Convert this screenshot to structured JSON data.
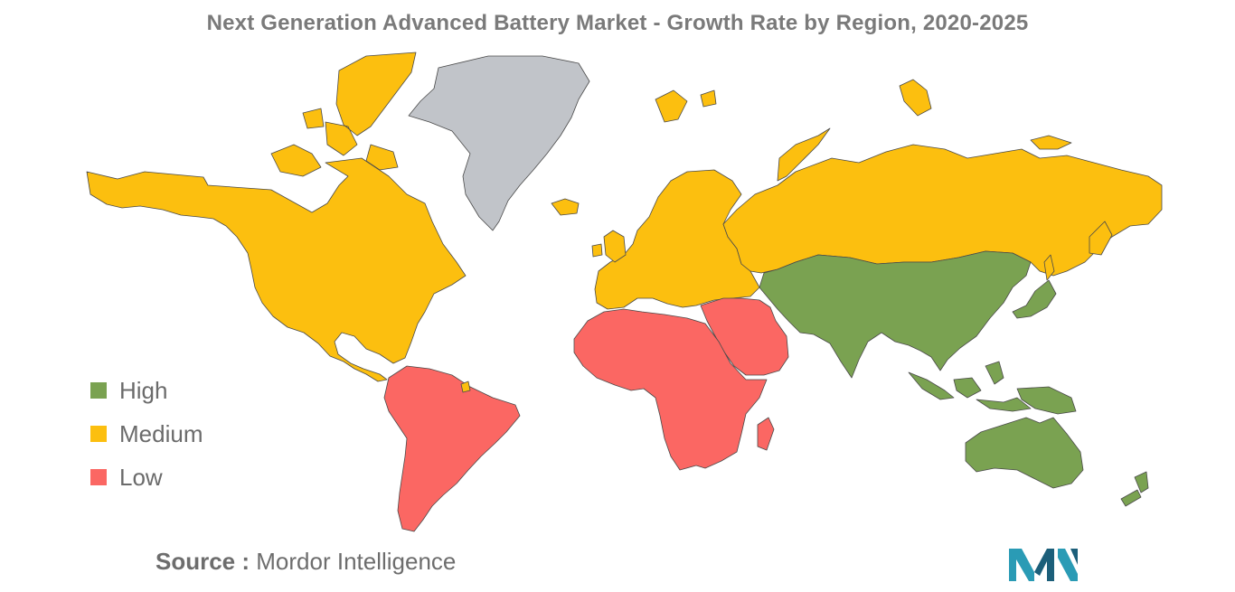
{
  "title": "Next Generation Advanced Battery Market - Growth Rate by Region, 2020-2025",
  "legend": [
    {
      "label": "High",
      "color": "#7aa251"
    },
    {
      "label": "Medium",
      "color": "#fcbf0f"
    },
    {
      "label": "Low",
      "color": "#fb6763"
    }
  ],
  "no_data_color": "#c1c4c9",
  "regions": [
    {
      "name": "North America",
      "level": "Medium"
    },
    {
      "name": "Greenland",
      "level": "No data"
    },
    {
      "name": "Europe",
      "level": "Medium"
    },
    {
      "name": "Russia",
      "level": "Medium"
    },
    {
      "name": "South America",
      "level": "Low"
    },
    {
      "name": "Africa",
      "level": "Low"
    },
    {
      "name": "Middle East",
      "level": "Low"
    },
    {
      "name": "Asia",
      "level": "High"
    },
    {
      "name": "Australia",
      "level": "High"
    },
    {
      "name": "New Zealand",
      "level": "High"
    }
  ],
  "source": {
    "key": "Source :",
    "value": "Mordor Intelligence"
  },
  "logo_icon": "mordor-intelligence-logo"
}
